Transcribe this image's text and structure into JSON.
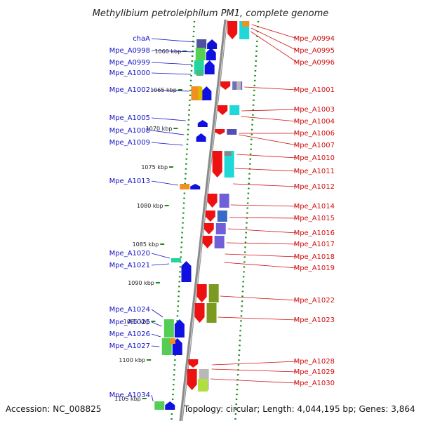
{
  "title": "Methylibium petroleiphilum PM1, complete genome",
  "footer": {
    "accession": "Accession: NC_008825",
    "topology": "Topology: circular; Length: 4,044,195 bp; Genes: 3,864"
  },
  "colors": {
    "left_label": "#1010c8",
    "right_label": "#d01010",
    "backbone": "#8a8a8a",
    "dotted_guide": "#1a8a1a",
    "forward_gene": "#0a0ae6",
    "reverse_gene": "#ee1111"
  },
  "chart_data": {
    "type": "genome_map",
    "kbp_ticks": [
      "1060 kbp",
      "1065 kbp",
      "1070 kbp",
      "1075 kbp",
      "1080 kbp",
      "1085 kbp",
      "1090 kbp",
      "1095 kbp",
      "1100 kbp",
      "1105 kbp"
    ],
    "left_genes": [
      "chaA",
      "Mpe_A0998",
      "Mpe_A0999",
      "Mpe_A1000",
      "Mpe_A1002",
      "Mpe_A1005",
      "Mpe_A1008",
      "Mpe_A1009",
      "Mpe_A1013",
      "Mpe_A1020",
      "Mpe_A1021",
      "Mpe_A1024",
      "Mpe_A1025",
      "Mpe_A1026",
      "Mpe_A1027",
      "Mpe_A1034"
    ],
    "right_genes": [
      "Mpe_A0994",
      "Mpe_A0995",
      "Mpe_A0996",
      "Mpe_A1001",
      "Mpe_A1003",
      "Mpe_A1004",
      "Mpe_A1006",
      "Mpe_A1007",
      "Mpe_A1010",
      "Mpe_A1011",
      "Mpe_A1012",
      "Mpe_A1014",
      "Mpe_A1015",
      "Mpe_A1016",
      "Mpe_A1017",
      "Mpe_A1018",
      "Mpe_A1019",
      "Mpe_A1022",
      "Mpe_A1023",
      "Mpe_A1028",
      "Mpe_A1029",
      "Mpe_A1030"
    ]
  }
}
